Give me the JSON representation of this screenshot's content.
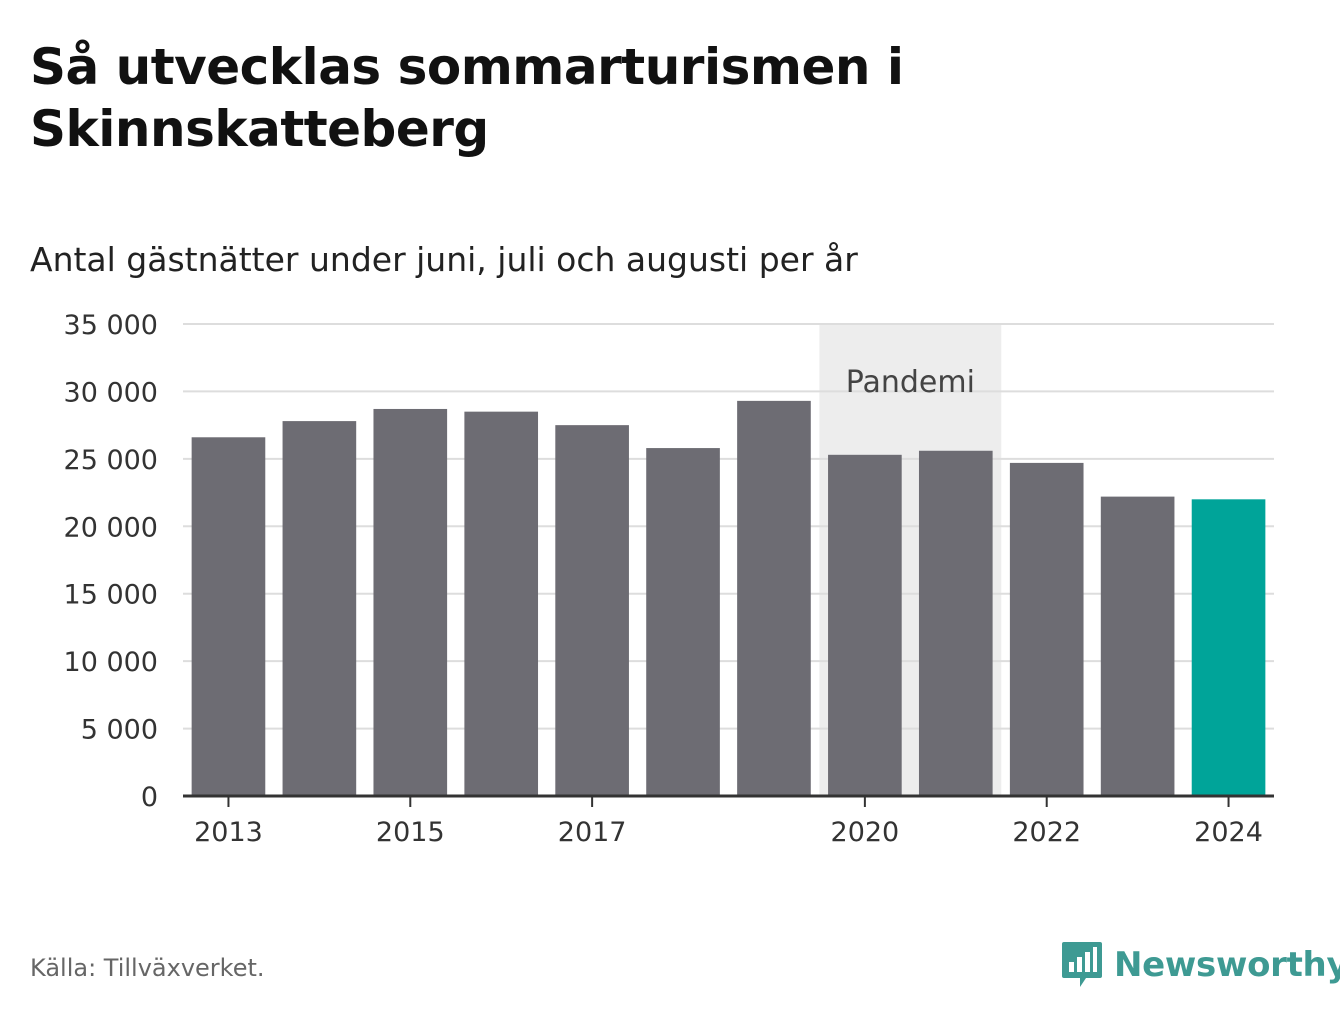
{
  "header": {
    "title": "Så utvecklas sommarturismen i Skinnskatteberg",
    "subtitle": "Antal gästnätter under juni, juli och augusti per år"
  },
  "footer": {
    "source": "Källa: Tillväxverket.",
    "brand": "Newsworthy"
  },
  "colors": {
    "bar": "#6d6c73",
    "highlight": "#00a499",
    "band": "#ededed",
    "grid": "#dddddd",
    "axis": "#333333",
    "brand": "#3e9a93"
  },
  "chart_data": {
    "type": "bar",
    "categories": [
      "2013",
      "2014",
      "2015",
      "2016",
      "2017",
      "2018",
      "2019",
      "2020",
      "2021",
      "2022",
      "2023",
      "2024"
    ],
    "values": [
      26600,
      27800,
      28700,
      28500,
      27500,
      25800,
      29300,
      25300,
      25600,
      24700,
      22200,
      22000
    ],
    "highlight_index": 11,
    "x_tick_labels": [
      "2013",
      "2015",
      "2017",
      "2020",
      "2022",
      "2024"
    ],
    "y_ticks": [
      0,
      5000,
      10000,
      15000,
      20000,
      25000,
      30000,
      35000
    ],
    "y_tick_labels": [
      "0",
      "5 000",
      "10 000",
      "15 000",
      "20 000",
      "25 000",
      "30 000",
      "35 000"
    ],
    "ylim": [
      0,
      35000
    ],
    "grid": true,
    "annotation": {
      "label": "Pandemi",
      "from": "2020",
      "to": "2021"
    }
  }
}
